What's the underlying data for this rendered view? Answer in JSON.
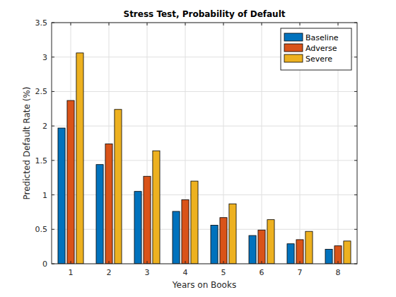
{
  "chart_data": {
    "type": "bar",
    "title": "Stress Test, Probability of Default",
    "x_label": "Years on Books",
    "y_label": "Predicted Default Rate (%)",
    "categories": [
      "1",
      "2",
      "3",
      "4",
      "5",
      "6",
      "7",
      "8"
    ],
    "series": [
      {
        "name": "Baseline",
        "color": "#0072bd",
        "values": [
          1.97,
          1.44,
          1.05,
          0.76,
          0.56,
          0.41,
          0.29,
          0.21
        ]
      },
      {
        "name": "Adverse",
        "color": "#d95319",
        "values": [
          2.37,
          1.74,
          1.27,
          0.93,
          0.67,
          0.49,
          0.35,
          0.26
        ]
      },
      {
        "name": "Severe",
        "color": "#edb120",
        "values": [
          3.06,
          2.24,
          1.64,
          1.2,
          0.87,
          0.64,
          0.47,
          0.33
        ]
      }
    ],
    "ylim": [
      0,
      3.5
    ],
    "yticks": [
      0,
      0.5,
      1,
      1.5,
      2,
      2.5,
      3,
      3.5
    ],
    "grid": true,
    "legend": "northeast"
  }
}
